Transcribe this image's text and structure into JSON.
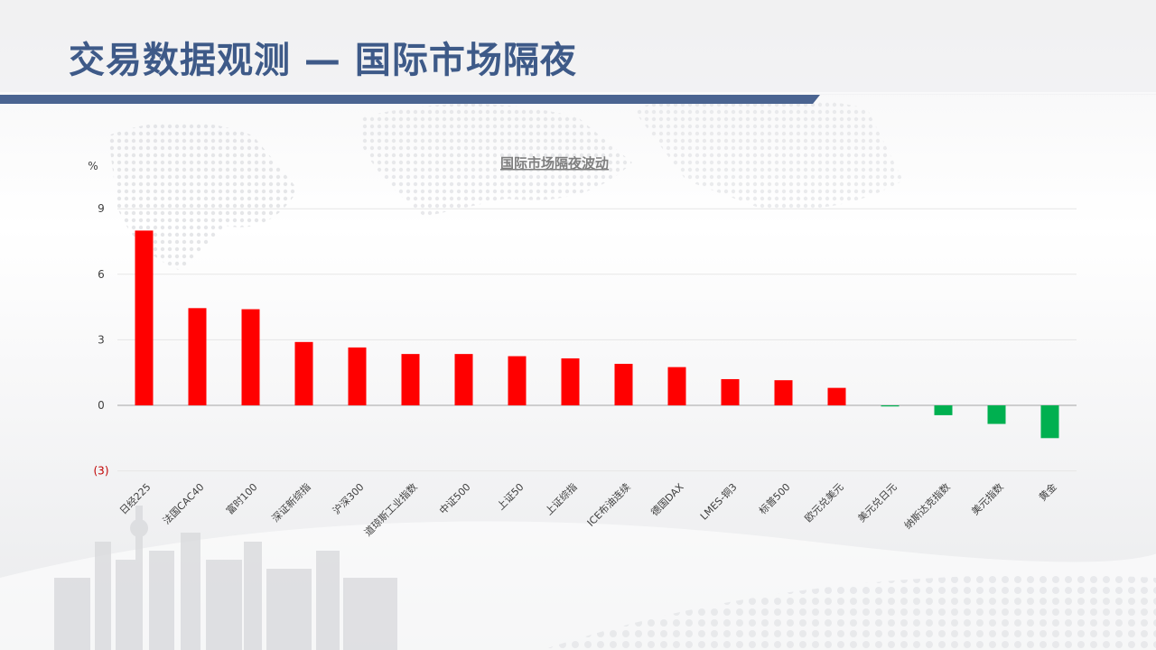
{
  "page": {
    "title": "交易数据观测 — 国际市场隔夜"
  },
  "colors": {
    "title": "#3e5a88",
    "title_bar": "#4a6491",
    "positive": "#ff0000",
    "negative": "#00b050",
    "negative_tick_label": "#c00000"
  },
  "chart_data": {
    "type": "bar",
    "title": "国际市场隔夜波动",
    "ylabel": "%",
    "ylim": [
      -3,
      9
    ],
    "yticks": [
      9,
      6,
      3,
      0,
      -3
    ],
    "ytick_labels": [
      "9",
      "6",
      "3",
      "0",
      "(3)"
    ],
    "grid": true,
    "categories": [
      "日经225",
      "法国CAC40",
      "富时100",
      "深证新综指",
      "沪深300",
      "道琼斯工业指数",
      "中证500",
      "上证50",
      "上证综指",
      "ICE布油连续",
      "德国DAX",
      "LMES-铜3",
      "标普500",
      "欧元兑美元",
      "美元兑日元",
      "纳斯达克指数",
      "美元指数",
      "黄金"
    ],
    "values": [
      8.0,
      4.45,
      4.4,
      2.9,
      2.65,
      2.35,
      2.35,
      2.25,
      2.15,
      1.9,
      1.75,
      1.2,
      1.15,
      0.8,
      -0.05,
      -0.45,
      -0.85,
      -1.5
    ]
  }
}
